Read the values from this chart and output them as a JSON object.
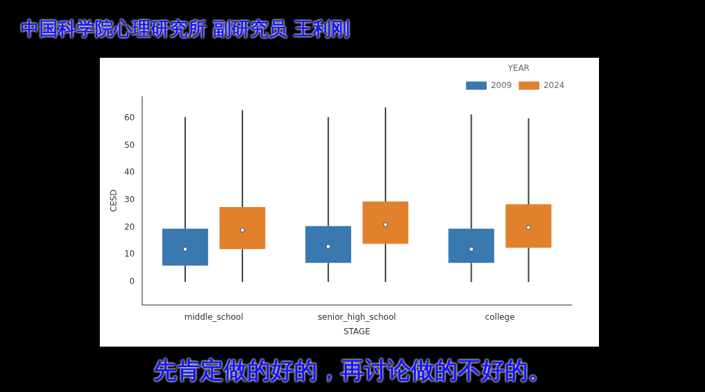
{
  "chart_data": {
    "type": "box",
    "annotations": [
      "中国科学院心理研究所 副研究员 王利刚",
      "先肯定做的好的，再讨论做的不好的。"
    ],
    "xlabel": "STAGE",
    "ylabel": "CESD",
    "legend_title": "YEAR",
    "legend": "top right",
    "grid": false,
    "categories": [
      "middle_school",
      "senior_high_school",
      "college"
    ],
    "ylim": [
      -8.4,
      68
    ],
    "yticks": [
      0,
      10,
      20,
      30,
      40,
      50,
      60
    ],
    "series": [
      {
        "name": "2009",
        "color": "#3a78b0",
        "boxes": [
          {
            "low": 0,
            "q1": 6,
            "median": 12,
            "q3": 19.5,
            "high": 60.5
          },
          {
            "low": 0,
            "q1": 7,
            "median": 13,
            "q3": 20.5,
            "high": 60.5
          },
          {
            "low": 0,
            "q1": 7,
            "median": 12,
            "q3": 19.5,
            "high": 61.5
          }
        ]
      },
      {
        "name": "2024",
        "color": "#e1812c",
        "boxes": [
          {
            "low": 0,
            "q1": 12,
            "median": 19,
            "q3": 27.5,
            "high": 63
          },
          {
            "low": 0,
            "q1": 14,
            "median": 21,
            "q3": 29.5,
            "high": 64
          },
          {
            "low": 0,
            "q1": 12.5,
            "median": 20,
            "q3": 28.5,
            "high": 60
          }
        ]
      }
    ]
  }
}
